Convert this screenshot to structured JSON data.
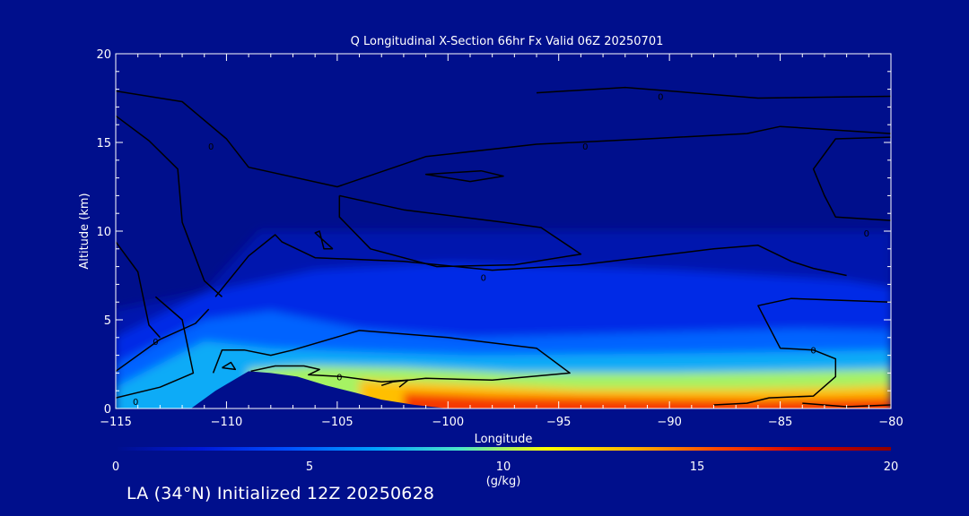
{
  "chart_data": {
    "type": "heatmap",
    "title": "Q Longitudinal X-Section 66hr  Fx Valid 06Z 20250701",
    "xlabel": "Longitude",
    "ylabel": "Altitude (km)",
    "xlim": [
      -115,
      -80
    ],
    "ylim": [
      0,
      20
    ],
    "x_ticks": [
      -115,
      -110,
      -105,
      -100,
      -95,
      -90,
      -85,
      -80
    ],
    "x_tick_labels": [
      "−115",
      "−110",
      "−105",
      "−100",
      "−95",
      "−90",
      "−85",
      "−80"
    ],
    "y_ticks": [
      0,
      5,
      10,
      15,
      20
    ],
    "colorbar": {
      "label": "(g/kg)",
      "range": [
        0,
        20
      ],
      "ticks": [
        0,
        5,
        10,
        15,
        20
      ],
      "colors": [
        "#000f8c",
        "#0019d8",
        "#0050ff",
        "#00a0ff",
        "#4ce6c8",
        "#ffff00",
        "#ffb400",
        "#ff4600",
        "#d20000",
        "#8c0000"
      ]
    },
    "terrain": [
      {
        "lon": -111.6,
        "alt": 0.0
      },
      {
        "lon": -110.5,
        "alt": 1.0
      },
      {
        "lon": -109.0,
        "alt": 2.1
      },
      {
        "lon": -108.0,
        "alt": 2.0
      },
      {
        "lon": -106.8,
        "alt": 1.8
      },
      {
        "lon": -105.5,
        "alt": 1.3
      },
      {
        "lon": -104.2,
        "alt": 0.9
      },
      {
        "lon": -103.0,
        "alt": 0.5
      },
      {
        "lon": -101.5,
        "alt": 0.2
      },
      {
        "lon": -100.0,
        "alt": 0.0
      }
    ],
    "moisture_bands": [
      {
        "q": 1,
        "top": [
          {
            "lon": -115,
            "alt": 5.6
          },
          {
            "lon": -111,
            "alt": 6.6
          },
          {
            "lon": -108.5,
            "alt": 10.0
          },
          {
            "lon": -80,
            "alt": 10.0
          }
        ]
      },
      {
        "q": 3,
        "top": [
          {
            "lon": -115,
            "alt": 4.0
          },
          {
            "lon": -111,
            "alt": 6.5
          },
          {
            "lon": -106,
            "alt": 7.8
          },
          {
            "lon": -100,
            "alt": 8.2
          },
          {
            "lon": -90,
            "alt": 7.8
          },
          {
            "lon": -82,
            "alt": 7.2
          },
          {
            "lon": -80,
            "alt": 6.8
          }
        ]
      },
      {
        "q": 5,
        "top": [
          {
            "lon": -115,
            "alt": 2.5
          },
          {
            "lon": -111,
            "alt": 5.0
          },
          {
            "lon": -108,
            "alt": 5.5
          },
          {
            "lon": -104,
            "alt": 4.5
          },
          {
            "lon": -99,
            "alt": 4.0
          },
          {
            "lon": -90,
            "alt": 4.3
          },
          {
            "lon": -84,
            "alt": 4.5
          },
          {
            "lon": -80,
            "alt": 4.4
          }
        ]
      },
      {
        "q": 7,
        "top": [
          {
            "lon": -115,
            "alt": 1.2
          },
          {
            "lon": -111,
            "alt": 3.8
          },
          {
            "lon": -108,
            "alt": 3.4
          },
          {
            "lon": -104,
            "alt": 3.2
          },
          {
            "lon": -99,
            "alt": 3.0
          },
          {
            "lon": -90,
            "alt": 3.1
          },
          {
            "lon": -84,
            "alt": 3.2
          },
          {
            "lon": -80,
            "alt": 3.3
          }
        ]
      },
      {
        "q": 10,
        "top": [
          {
            "lon": -109,
            "alt": 2.2
          },
          {
            "lon": -106,
            "alt": 2.4
          },
          {
            "lon": -102,
            "alt": 2.3
          },
          {
            "lon": -97,
            "alt": 2.0
          },
          {
            "lon": -90,
            "alt": 2.0
          },
          {
            "lon": -84,
            "alt": 2.1
          },
          {
            "lon": -80,
            "alt": 2.2
          }
        ]
      },
      {
        "q": 13,
        "top": [
          {
            "lon": -104,
            "alt": 1.6
          },
          {
            "lon": -100,
            "alt": 1.4
          },
          {
            "lon": -94,
            "alt": 1.1
          },
          {
            "lon": -87,
            "alt": 1.1
          },
          {
            "lon": -82,
            "alt": 1.2
          },
          {
            "lon": -80,
            "alt": 1.3
          }
        ]
      },
      {
        "q": 16,
        "top": [
          {
            "lon": -102,
            "alt": 0.9
          },
          {
            "lon": -98,
            "alt": 0.7
          },
          {
            "lon": -92,
            "alt": 0.6
          },
          {
            "lon": -86,
            "alt": 0.5
          },
          {
            "lon": -80,
            "alt": 0.6
          }
        ]
      }
    ],
    "contours": [
      {
        "points": [
          {
            "lon": -115,
            "alt": 17.9
          },
          {
            "lon": -112,
            "alt": 17.3
          },
          {
            "lon": -110,
            "alt": 15.2
          },
          {
            "lon": -109,
            "alt": 13.6
          },
          {
            "lon": -105,
            "alt": 12.5
          },
          {
            "lon": -101,
            "alt": 14.2
          },
          {
            "lon": -96,
            "alt": 14.9
          },
          {
            "lon": -91,
            "alt": 15.2
          },
          {
            "lon": -86.5,
            "alt": 15.5
          },
          {
            "lon": -85,
            "alt": 15.9
          },
          {
            "lon": -80,
            "alt": 15.5
          }
        ]
      },
      {
        "points": [
          {
            "lon": -96,
            "alt": 17.8
          },
          {
            "lon": -92,
            "alt": 18.1
          },
          {
            "lon": -86,
            "alt": 17.5
          },
          {
            "lon": -80,
            "alt": 17.6
          }
        ]
      },
      {
        "points": [
          {
            "lon": -115,
            "alt": 16.5
          },
          {
            "lon": -113.5,
            "alt": 15.1
          },
          {
            "lon": -112.2,
            "alt": 13.5
          },
          {
            "lon": -112,
            "alt": 10.5
          },
          {
            "lon": -111,
            "alt": 7.2
          },
          {
            "lon": -110.2,
            "alt": 6.3
          }
        ]
      },
      {
        "points": [
          {
            "lon": -98.5,
            "alt": 13.4
          },
          {
            "lon": -101,
            "alt": 13.2
          },
          {
            "lon": -99,
            "alt": 12.8
          },
          {
            "lon": -97.5,
            "alt": 13.1
          },
          {
            "lon": -98.5,
            "alt": 13.4
          }
        ]
      },
      {
        "points": [
          {
            "lon": -104.9,
            "alt": 12.0
          },
          {
            "lon": -102,
            "alt": 11.2
          },
          {
            "lon": -97.5,
            "alt": 10.5
          },
          {
            "lon": -95.8,
            "alt": 10.2
          },
          {
            "lon": -94,
            "alt": 8.7
          },
          {
            "lon": -97,
            "alt": 8.1
          },
          {
            "lon": -100.5,
            "alt": 8.0
          },
          {
            "lon": -103.5,
            "alt": 9.0
          },
          {
            "lon": -104.9,
            "alt": 10.8
          },
          {
            "lon": -104.9,
            "alt": 12.0
          }
        ]
      },
      {
        "points": [
          {
            "lon": -105.2,
            "alt": 9.0
          },
          {
            "lon": -106,
            "alt": 9.9
          },
          {
            "lon": -105.8,
            "alt": 10.0
          },
          {
            "lon": -105.6,
            "alt": 9.0
          },
          {
            "lon": -105.2,
            "alt": 9.0
          }
        ]
      },
      {
        "points": [
          {
            "lon": -110.5,
            "alt": 6.3
          },
          {
            "lon": -109,
            "alt": 8.6
          },
          {
            "lon": -107.8,
            "alt": 9.8
          },
          {
            "lon": -107.5,
            "alt": 9.4
          },
          {
            "lon": -106,
            "alt": 8.5
          },
          {
            "lon": -102,
            "alt": 8.3
          },
          {
            "lon": -98,
            "alt": 7.8
          },
          {
            "lon": -94,
            "alt": 8.1
          },
          {
            "lon": -88,
            "alt": 9.0
          },
          {
            "lon": -86,
            "alt": 9.2
          },
          {
            "lon": -84.5,
            "alt": 8.3
          },
          {
            "lon": -83.5,
            "alt": 7.9
          },
          {
            "lon": -82,
            "alt": 7.5
          }
        ]
      },
      {
        "points": [
          {
            "lon": -115,
            "alt": 9.4
          },
          {
            "lon": -114,
            "alt": 7.7
          },
          {
            "lon": -113.5,
            "alt": 4.7
          },
          {
            "lon": -113,
            "alt": 4.0
          }
        ]
      },
      {
        "points": [
          {
            "lon": -110.8,
            "alt": 5.6
          },
          {
            "lon": -111.4,
            "alt": 4.8
          },
          {
            "lon": -113,
            "alt": 3.9
          },
          {
            "lon": -115,
            "alt": 2.1
          }
        ]
      },
      {
        "points": [
          {
            "lon": -113.2,
            "alt": 6.3
          },
          {
            "lon": -112,
            "alt": 5.0
          },
          {
            "lon": -111.5,
            "alt": 2.0
          },
          {
            "lon": -113,
            "alt": 1.2
          },
          {
            "lon": -115,
            "alt": 0.6
          }
        ]
      },
      {
        "points": [
          {
            "lon": -110.6,
            "alt": 2.0
          },
          {
            "lon": -110.2,
            "alt": 3.3
          },
          {
            "lon": -109.2,
            "alt": 3.3
          },
          {
            "lon": -108,
            "alt": 3.0
          },
          {
            "lon": -107,
            "alt": 3.3
          },
          {
            "lon": -104,
            "alt": 4.4
          },
          {
            "lon": -100,
            "alt": 4.0
          },
          {
            "lon": -96,
            "alt": 3.4
          },
          {
            "lon": -94.5,
            "alt": 2.0
          },
          {
            "lon": -98,
            "alt": 1.6
          },
          {
            "lon": -101,
            "alt": 1.7
          },
          {
            "lon": -102.5,
            "alt": 1.5
          },
          {
            "lon": -103,
            "alt": 1.3
          }
        ]
      },
      {
        "points": [
          {
            "lon": -110.2,
            "alt": 2.3
          },
          {
            "lon": -109.8,
            "alt": 2.6
          },
          {
            "lon": -109.6,
            "alt": 2.2
          },
          {
            "lon": -110.2,
            "alt": 2.3
          }
        ]
      },
      {
        "points": [
          {
            "lon": -108.9,
            "alt": 2.1
          },
          {
            "lon": -107.8,
            "alt": 2.4
          },
          {
            "lon": -106.5,
            "alt": 2.4
          },
          {
            "lon": -105.8,
            "alt": 2.2
          },
          {
            "lon": -106.3,
            "alt": 1.9
          },
          {
            "lon": -104.8,
            "alt": 1.8
          },
          {
            "lon": -103.0,
            "alt": 1.5
          },
          {
            "lon": -101.8,
            "alt": 1.6
          },
          {
            "lon": -102.2,
            "alt": 1.2
          }
        ]
      },
      {
        "points": [
          {
            "lon": -80,
            "alt": 6.0
          },
          {
            "lon": -84.5,
            "alt": 6.2
          },
          {
            "lon": -86,
            "alt": 5.8
          },
          {
            "lon": -85,
            "alt": 3.4
          },
          {
            "lon": -83.5,
            "alt": 3.3
          },
          {
            "lon": -82.5,
            "alt": 2.8
          },
          {
            "lon": -82.5,
            "alt": 1.8
          },
          {
            "lon": -83.5,
            "alt": 0.7
          },
          {
            "lon": -85.5,
            "alt": 0.6
          },
          {
            "lon": -86.5,
            "alt": 0.3
          },
          {
            "lon": -88,
            "alt": 0.2
          }
        ]
      },
      {
        "points": [
          {
            "lon": -84,
            "alt": 0.3
          },
          {
            "lon": -82,
            "alt": 0.1
          },
          {
            "lon": -80,
            "alt": 0.2
          }
        ]
      },
      {
        "points": [
          {
            "lon": -80,
            "alt": 10.6
          },
          {
            "lon": -82.5,
            "alt": 10.8
          },
          {
            "lon": -83,
            "alt": 12.0
          },
          {
            "lon": -83.5,
            "alt": 13.5
          },
          {
            "lon": -82.5,
            "alt": 15.2
          },
          {
            "lon": -80,
            "alt": 15.3
          }
        ]
      }
    ],
    "contour_labels": [
      {
        "text": "0",
        "lon": -110.7,
        "alt": 14.8
      },
      {
        "text": "0",
        "lon": -93.8,
        "alt": 14.8
      },
      {
        "text": "0",
        "lon": -90.4,
        "alt": 17.6
      },
      {
        "text": "0",
        "lon": -98.4,
        "alt": 7.4
      },
      {
        "text": "0",
        "lon": -81.1,
        "alt": 9.9
      },
      {
        "text": "0",
        "lon": -113.2,
        "alt": 3.8
      },
      {
        "text": "0",
        "lon": -114.1,
        "alt": 0.4
      },
      {
        "text": "0",
        "lon": -104.9,
        "alt": 1.8
      },
      {
        "text": "0",
        "lon": -83.5,
        "alt": 3.3
      }
    ]
  },
  "footer": {
    "text": "LA (34°N) Initialized 12Z 20250628"
  }
}
